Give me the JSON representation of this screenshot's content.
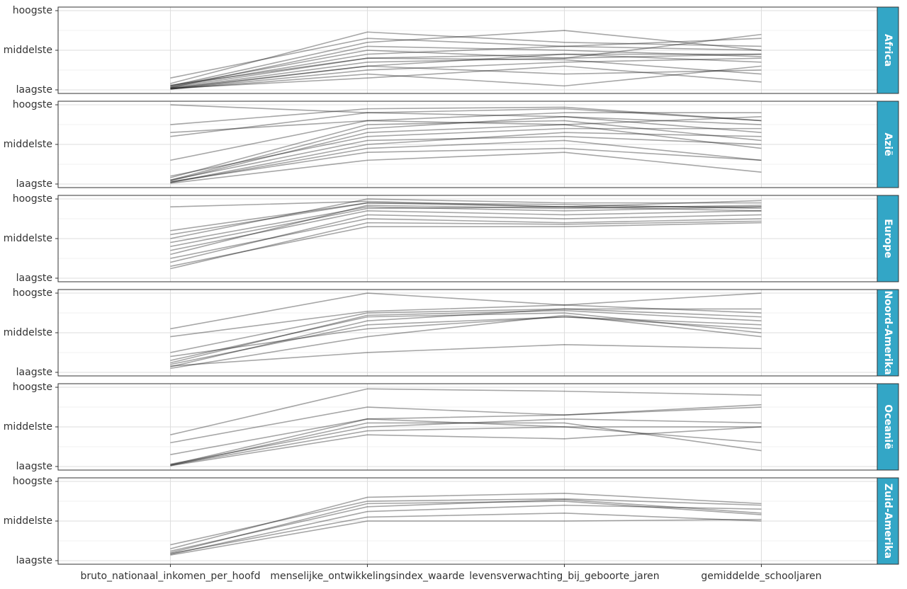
{
  "chart_data": {
    "type": "parallel",
    "categories": [
      "bruto_nationaal_inkomen_per_hoofd",
      "menselijke_ontwikkelingsindex_waarde",
      "levensverwachting_bij_geboorte_jaren",
      "gemiddelde_schooljaren"
    ],
    "ylim": [
      -0.045,
      1.045
    ],
    "yticks": [
      {
        "value": 0,
        "label": "laagste"
      },
      {
        "value": 0.5,
        "label": "middelste"
      },
      {
        "value": 1,
        "label": "hoogste"
      }
    ],
    "grid": true,
    "line_color": "#000000",
    "strip_color": "#33a6c6",
    "facets": [
      {
        "label": "Africa",
        "series": [
          {
            "values": [
              0.02,
              0.35,
              0.4,
              0.45
            ]
          },
          {
            "values": [
              0.03,
              0.55,
              0.5,
              0.42
            ]
          },
          {
            "values": [
              0.05,
              0.6,
              0.75,
              0.5
            ]
          },
          {
            "values": [
              0.01,
              0.25,
              0.35,
              0.4
            ]
          },
          {
            "values": [
              0.02,
              0.3,
              0.45,
              0.35
            ]
          },
          {
            "values": [
              0.08,
              0.73,
              0.6,
              0.55
            ]
          },
          {
            "values": [
              0.04,
              0.45,
              0.55,
              0.65
            ]
          },
          {
            "values": [
              0.01,
              0.2,
              0.05,
              0.3
            ]
          },
          {
            "values": [
              0.03,
              0.4,
              0.38,
              0.2
            ]
          },
          {
            "values": [
              0.02,
              0.15,
              0.3,
              0.1
            ]
          },
          {
            "values": [
              0.05,
              0.5,
              0.4,
              0.7
            ]
          },
          {
            "values": [
              0.15,
              0.65,
              0.55,
              0.5
            ]
          },
          {
            "values": [
              0.01,
              0.3,
              0.2,
              0.25
            ]
          },
          {
            "values": [
              0.06,
              0.4,
              0.45,
              0.45
            ]
          }
        ]
      },
      {
        "label": "Azië",
        "series": [
          {
            "values": [
              1.0,
              0.9,
              0.95,
              0.8
            ]
          },
          {
            "values": [
              0.75,
              0.95,
              0.97,
              0.8
            ]
          },
          {
            "values": [
              0.05,
              0.7,
              0.85,
              0.75
            ]
          },
          {
            "values": [
              0.02,
              0.5,
              0.65,
              0.6
            ]
          },
          {
            "values": [
              0.03,
              0.4,
              0.45,
              0.3
            ]
          },
          {
            "values": [
              0.6,
              0.9,
              0.85,
              0.65
            ]
          },
          {
            "values": [
              0.1,
              0.6,
              0.7,
              0.7
            ]
          },
          {
            "values": [
              0.01,
              0.3,
              0.4,
              0.15
            ]
          },
          {
            "values": [
              0.05,
              0.55,
              0.6,
              0.5
            ]
          },
          {
            "values": [
              0.3,
              0.8,
              0.75,
              0.85
            ]
          },
          {
            "values": [
              0.02,
              0.45,
              0.55,
              0.3
            ]
          },
          {
            "values": [
              0.08,
              0.75,
              0.8,
              0.55
            ]
          },
          {
            "values": [
              0.65,
              0.8,
              0.9,
              0.9
            ]
          },
          {
            "values": [
              0.04,
              0.65,
              0.75,
              0.45
            ]
          }
        ]
      },
      {
        "label": "Europe",
        "series": [
          {
            "values": [
              0.9,
              0.97,
              0.9,
              0.9
            ]
          },
          {
            "values": [
              0.6,
              0.95,
              0.93,
              0.88
            ]
          },
          {
            "values": [
              0.45,
              0.9,
              0.85,
              0.9
            ]
          },
          {
            "values": [
              0.35,
              0.85,
              0.8,
              0.85
            ]
          },
          {
            "values": [
              0.25,
              0.75,
              0.7,
              0.75
            ]
          },
          {
            "values": [
              0.15,
              0.65,
              0.65,
              0.7
            ]
          },
          {
            "values": [
              0.3,
              0.92,
              0.88,
              0.92
            ]
          },
          {
            "values": [
              0.5,
              1.0,
              0.95,
              0.95
            ]
          },
          {
            "values": [
              0.2,
              0.8,
              0.75,
              0.8
            ]
          },
          {
            "values": [
              0.12,
              0.7,
              0.68,
              0.72
            ]
          },
          {
            "values": [
              0.4,
              0.88,
              0.9,
              0.98
            ]
          },
          {
            "values": [
              0.55,
              0.95,
              0.9,
              0.85
            ]
          }
        ]
      },
      {
        "label": "Noord-Amerika",
        "series": [
          {
            "values": [
              0.55,
              1.0,
              0.85,
              1.0
            ]
          },
          {
            "values": [
              0.45,
              0.77,
              0.85,
              0.75
            ]
          },
          {
            "values": [
              0.25,
              0.75,
              0.8,
              0.7
            ]
          },
          {
            "values": [
              0.15,
              0.7,
              0.75,
              0.5
            ]
          },
          {
            "values": [
              0.1,
              0.6,
              0.7,
              0.55
            ]
          },
          {
            "values": [
              0.08,
              0.25,
              0.35,
              0.3
            ]
          },
          {
            "values": [
              0.05,
              0.45,
              0.72,
              0.45
            ]
          },
          {
            "values": [
              0.12,
              0.72,
              0.78,
              0.65
            ]
          },
          {
            "values": [
              0.2,
              0.55,
              0.7,
              0.6
            ]
          },
          {
            "values": [
              0.07,
              0.65,
              0.8,
              0.8
            ]
          }
        ]
      },
      {
        "label": "Oceanië",
        "series": [
          {
            "values": [
              0.4,
              0.98,
              0.95,
              0.9
            ]
          },
          {
            "values": [
              0.3,
              0.75,
              0.65,
              0.78
            ]
          },
          {
            "values": [
              0.15,
              0.6,
              0.65,
              0.75
            ]
          },
          {
            "values": [
              0.02,
              0.6,
              0.5,
              0.5
            ]
          },
          {
            "values": [
              0.02,
              0.45,
              0.5,
              0.3
            ]
          },
          {
            "values": [
              0.01,
              0.4,
              0.35,
              0.5
            ]
          },
          {
            "values": [
              0.03,
              0.5,
              0.6,
              0.55
            ]
          },
          {
            "values": [
              0.01,
              0.55,
              0.55,
              0.2
            ]
          }
        ]
      },
      {
        "label": "Zuid-Amerika",
        "series": [
          {
            "values": [
              0.15,
              0.8,
              0.85,
              0.72
            ]
          },
          {
            "values": [
              0.12,
              0.68,
              0.77,
              0.6
            ]
          },
          {
            "values": [
              0.08,
              0.62,
              0.7,
              0.65
            ]
          },
          {
            "values": [
              0.1,
              0.72,
              0.75,
              0.58
            ]
          },
          {
            "values": [
              0.07,
              0.5,
              0.5,
              0.52
            ]
          },
          {
            "values": [
              0.2,
              0.75,
              0.78,
              0.7
            ]
          },
          {
            "values": [
              0.09,
              0.55,
              0.6,
              0.5
            ]
          }
        ]
      }
    ]
  }
}
